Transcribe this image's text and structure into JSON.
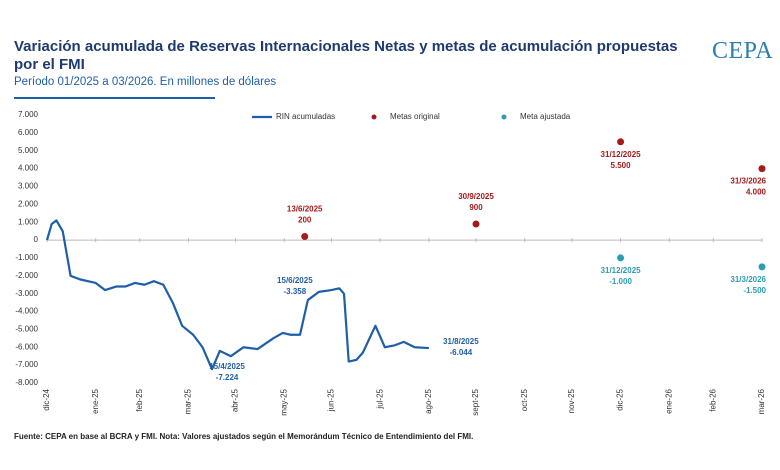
{
  "chart_data": {
    "type": "line",
    "title": "Variación acumulada de Reservas Internacionales Netas y metas de acumulación propuestas por el FMI",
    "subtitle": "Período 01/2025 a 03/2026. En millones de dólares",
    "logo": "CEPA",
    "source": "Fuente: CEPA en base al BCRA y FMI. Nota: Valores ajustados según el Memorándum Técnico de Entendimiento del FMI.",
    "legend": "top",
    "xlim": [
      "2024-12-31",
      "2026-03-31"
    ],
    "xticks": [
      {
        "value": "2024-12-31",
        "label": "dic-24"
      },
      {
        "value": "2025-01-31",
        "label": "ene-25"
      },
      {
        "value": "2025-02-28",
        "label": "feb-25"
      },
      {
        "value": "2025-03-31",
        "label": "mar-25"
      },
      {
        "value": "2025-04-30",
        "label": "abr-25"
      },
      {
        "value": "2025-05-31",
        "label": "may-25"
      },
      {
        "value": "2025-06-30",
        "label": "jun-25"
      },
      {
        "value": "2025-07-31",
        "label": "jul-25"
      },
      {
        "value": "2025-08-31",
        "label": "ago-25"
      },
      {
        "value": "2025-09-30",
        "label": "sept-25"
      },
      {
        "value": "2025-10-31",
        "label": "oct-25"
      },
      {
        "value": "2025-11-30",
        "label": "nov-25"
      },
      {
        "value": "2025-12-31",
        "label": "dic-25"
      },
      {
        "value": "2026-01-31",
        "label": "ene-26"
      },
      {
        "value": "2026-02-28",
        "label": "feb-26"
      },
      {
        "value": "2026-03-31",
        "label": "mar-26"
      }
    ],
    "ylim": [
      -8000,
      7000
    ],
    "yticks": [
      {
        "value": 7000,
        "label": "7.000"
      },
      {
        "value": 6000,
        "label": "6.000"
      },
      {
        "value": 5000,
        "label": "5.000"
      },
      {
        "value": 4000,
        "label": "4.000"
      },
      {
        "value": 3000,
        "label": "3.000"
      },
      {
        "value": 2000,
        "label": "2.000"
      },
      {
        "value": 1000,
        "label": "1.000"
      },
      0,
      {
        "value": -1000,
        "label": "-1.000"
      },
      {
        "value": -2000,
        "label": "-2.000"
      },
      {
        "value": -3000,
        "label": "-3.000"
      },
      {
        "value": -4000,
        "label": "-4.000"
      },
      {
        "value": -5000,
        "label": "-5.000"
      },
      {
        "value": -6000,
        "label": "-6.000"
      },
      {
        "value": -7000,
        "label": "-7.000"
      },
      {
        "value": -8000,
        "label": "-8.000"
      }
    ],
    "grid": false,
    "series": [
      {
        "name": "RIN acumuladas",
        "type": "line",
        "color": "#1f5fa8",
        "x": [
          "2024-12-31",
          "2025-01-03",
          "2025-01-06",
          "2025-01-10",
          "2025-01-15",
          "2025-01-21",
          "2025-01-31",
          "2025-02-06",
          "2025-02-13",
          "2025-02-19",
          "2025-02-25",
          "2025-03-03",
          "2025-03-09",
          "2025-03-15",
          "2025-03-21",
          "2025-03-27",
          "2025-04-03",
          "2025-04-09",
          "2025-04-15",
          "2025-04-20",
          "2025-04-27",
          "2025-05-05",
          "2025-05-14",
          "2025-05-24",
          "2025-05-30",
          "2025-06-04",
          "2025-06-10",
          "2025-06-15",
          "2025-06-22",
          "2025-06-30",
          "2025-07-05",
          "2025-07-08",
          "2025-07-11",
          "2025-07-16",
          "2025-07-20",
          "2025-07-28",
          "2025-08-03",
          "2025-08-09",
          "2025-08-15",
          "2025-08-22",
          "2025-08-31"
        ],
        "values": [
          0,
          900,
          1100,
          500,
          -2000,
          -2200,
          -2400,
          -2800,
          -2600,
          -2600,
          -2400,
          -2500,
          -2300,
          -2500,
          -3500,
          -4800,
          -5300,
          -6000,
          -7224,
          -6200,
          -6500,
          -6000,
          -6100,
          -5500,
          -5200,
          -5300,
          -5300,
          -3358,
          -2900,
          -2800,
          -2700,
          -3000,
          -6800,
          -6700,
          -6300,
          -4800,
          -6000,
          -5900,
          -5700,
          -6000,
          -6044
        ]
      },
      {
        "name": "Metas original",
        "type": "scatter",
        "color": "#a31a1a",
        "x": [
          "2025-06-13",
          "2025-09-30",
          "2025-12-31",
          "2026-03-31"
        ],
        "values": [
          200,
          900,
          5500,
          4000
        ],
        "point_labels": [
          "13/6/2025",
          "30/9/2025",
          "31/12/2025",
          "31/3/2026"
        ],
        "value_labels": [
          "200",
          "900",
          "5.500",
          "4.000"
        ]
      },
      {
        "name": "Meta ajustada",
        "type": "scatter",
        "color": "#2a9db5",
        "x": [
          "2025-12-31",
          "2026-03-31"
        ],
        "values": [
          -1000,
          -1500
        ],
        "point_labels": [
          "31/12/2025",
          "31/3/2026"
        ],
        "value_labels": [
          "-1.000",
          "-1.500"
        ]
      }
    ],
    "annotations": [
      {
        "x": "2025-04-15",
        "y": -7224,
        "label": "15/4/2025",
        "value_label": "-7.224"
      },
      {
        "x": "2025-06-15",
        "y": -3358,
        "label": "15/6/2025",
        "value_label": "-3.358"
      },
      {
        "x": "2025-08-31",
        "y": -6044,
        "label": "31/8/2025",
        "value_label": "-6.044"
      }
    ]
  }
}
